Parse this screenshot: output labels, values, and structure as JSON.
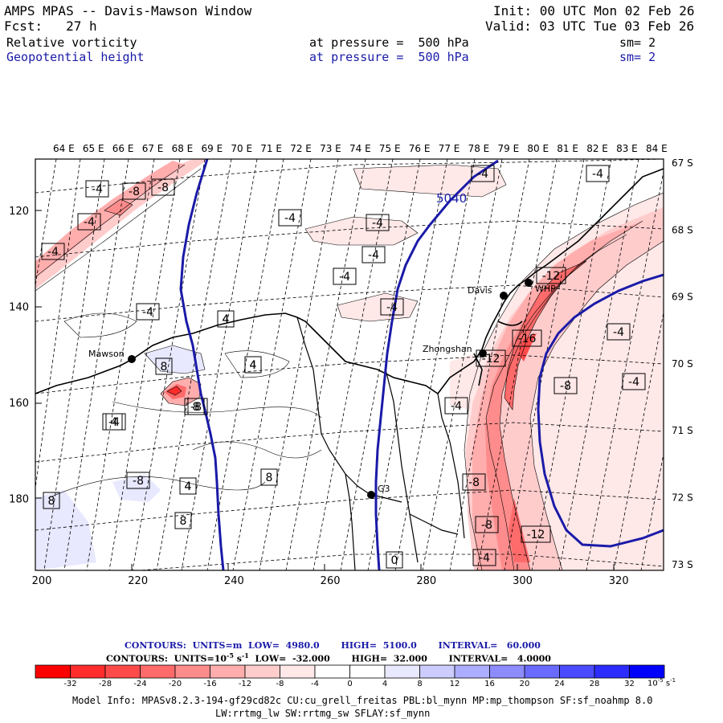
{
  "header": {
    "title": "AMPS MPAS -- Davis-Mawson Window",
    "forecast": "Fcst:   27 h",
    "init": "Init: 00 UTC Mon 02 Feb 26",
    "valid": "Valid: 03 UTC Tue 03 Feb 26",
    "fields": [
      {
        "name": "Relative vorticity",
        "pressure": "at pressure =  500 hPa",
        "sm": "sm= 2",
        "color": "#000000"
      },
      {
        "name": "Geopotential height",
        "pressure": "at pressure =  500 hPa",
        "sm": "sm= 2",
        "color": "#1a1aa8"
      }
    ]
  },
  "map": {
    "top_lon_labels": [
      "64 E",
      "65 E",
      "66 E",
      "67 E",
      "68 E",
      "69 E",
      "70 E",
      "71 E",
      "72 E",
      "73 E",
      "74 E",
      "75 E",
      "76 E",
      "77 E",
      "78 E",
      "79 E",
      "80 E",
      "81 E",
      "82 E",
      "83 E",
      "84 E"
    ],
    "right_lat_labels": [
      "67 S",
      "68 S",
      "69 S",
      "70 S",
      "71 S",
      "72 S",
      "73 S"
    ],
    "bottom_grid_labels": [
      "200",
      "220",
      "240",
      "260",
      "280",
      "300",
      "320"
    ],
    "left_grid_labels": [
      "120",
      "140",
      "160",
      "180"
    ],
    "stations": [
      {
        "name": "Mawson"
      },
      {
        "name": "Davis"
      },
      {
        "name": "WHP"
      },
      {
        "name": "Zhongshan"
      },
      {
        "name": "G3"
      }
    ],
    "height_contour_label": "5040",
    "vorticity_labels": [
      "-4",
      "-8",
      "-8",
      "-4",
      "-4",
      "-4",
      "-4",
      "-4",
      "-4",
      "-4",
      "-4",
      "-12",
      "-16",
      "-12",
      "-4",
      "-4",
      "-8",
      "-8",
      "-8",
      "-8",
      "-12",
      "-4",
      "-4",
      "-4",
      "-4",
      "-8",
      "-4",
      "4",
      "4",
      "8",
      "8",
      "4",
      "8",
      "8",
      "4",
      "4",
      "4",
      "4",
      "8",
      "0"
    ]
  },
  "legend": {
    "line1": {
      "label": "CONTOURS:",
      "units": "UNITS=m",
      "low": "LOW=  4980.0",
      "high": "HIGH=  5100.0",
      "interval": "INTERVAL=   60.000",
      "color": "#1a1aa8"
    },
    "line2": {
      "label": "CONTOURS:",
      "units": "UNITS=10",
      "units_exp": "-5",
      "units_suffix": " s",
      "units_suffix_exp": "-1",
      "low": "LOW=  -32.000",
      "high": "HIGH=  32.000",
      "interval": "INTERVAL=   4.0000",
      "color": "#000000"
    },
    "colorbar_ticks": [
      "-32",
      "-28",
      "-24",
      "-20",
      "-16",
      "-12",
      "-8",
      "-4",
      "0",
      "4",
      "8",
      "12",
      "16",
      "20",
      "24",
      "28",
      "32"
    ],
    "colorbar_unit": "10",
    "colorbar_unit_exp": "-5",
    "colorbar_unit_suffix": " s",
    "colorbar_unit_suffix_exp": "-1",
    "colors": [
      "#ff0000",
      "#ff2c2c",
      "#ff4a4a",
      "#ff6a6a",
      "#ff8c8c",
      "#ffadad",
      "#ffcccc",
      "#ffe8e8",
      "#ffffff",
      "#ffffff",
      "#e8e8ff",
      "#ccccff",
      "#adadff",
      "#8c8cff",
      "#6a6aff",
      "#3a3aff",
      "#0000ff"
    ]
  },
  "model_info": {
    "line1": "Model Info: MPASv8.2.3-194-gf29cd82c CU:cu_grell_freitas PBL:bl_mynn MP:mp_thompson SF:sf_noahmp 8.0",
    "line2": "LW:rrtmg_lw SW:rrtmg_sw SFLAY:sf_mynn"
  }
}
